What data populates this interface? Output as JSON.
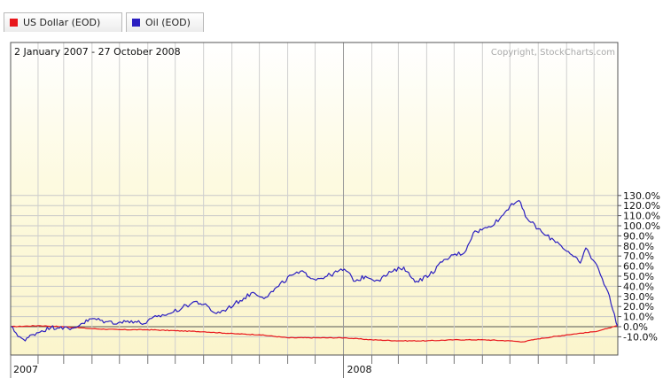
{
  "legend": {
    "items": [
      {
        "label": "US Dollar (EOD)",
        "color": "#e8161b"
      },
      {
        "label": "Oil (EOD)",
        "color": "#2b1fc1"
      }
    ]
  },
  "chart_data": {
    "type": "line",
    "date_range_label": "2 January 2007 - 27 October 2008",
    "copyright": "Copyright, StockCharts.com",
    "x_tick_labels": [
      "2007",
      "2008"
    ],
    "y_tick_labels": [
      "130.0%",
      "120.0%",
      "110.0%",
      "100.0%",
      "90.0%",
      "80.0%",
      "70.0%",
      "60.0%",
      "50.0%",
      "40.0%",
      "30.0%",
      "20.0%",
      "10.0%",
      "0.0%",
      "-10.0%"
    ],
    "ylim": [
      -15,
      136
    ],
    "xlim": [
      "2007-01-02",
      "2008-10-27"
    ],
    "grid": true,
    "series": [
      {
        "name": "Oil (EOD)",
        "color": "#2b1fc1",
        "points": [
          [
            "2007-01-02",
            0
          ],
          [
            "2007-01-12",
            -10
          ],
          [
            "2007-01-18",
            -14
          ],
          [
            "2007-01-25",
            -8
          ],
          [
            "2007-02-05",
            -4
          ],
          [
            "2007-02-15",
            -1
          ],
          [
            "2007-02-26",
            0
          ],
          [
            "2007-03-08",
            -3
          ],
          [
            "2007-03-20",
            3
          ],
          [
            "2007-04-02",
            8
          ],
          [
            "2007-04-16",
            5
          ],
          [
            "2007-04-30",
            4
          ],
          [
            "2007-05-14",
            6
          ],
          [
            "2007-05-28",
            3
          ],
          [
            "2007-06-11",
            10
          ],
          [
            "2007-06-25",
            13
          ],
          [
            "2007-07-09",
            19
          ],
          [
            "2007-07-23",
            25
          ],
          [
            "2007-08-01",
            22
          ],
          [
            "2007-08-15",
            13
          ],
          [
            "2007-08-27",
            18
          ],
          [
            "2007-09-10",
            26
          ],
          [
            "2007-09-24",
            34
          ],
          [
            "2007-10-08",
            29
          ],
          [
            "2007-10-22",
            40
          ],
          [
            "2007-11-05",
            51
          ],
          [
            "2007-11-19",
            54
          ],
          [
            "2007-11-30",
            47
          ],
          [
            "2007-12-14",
            50
          ],
          [
            "2008-01-02",
            57
          ],
          [
            "2008-01-14",
            45
          ],
          [
            "2008-01-25",
            50
          ],
          [
            "2008-02-08",
            46
          ],
          [
            "2008-02-22",
            54
          ],
          [
            "2008-03-07",
            59
          ],
          [
            "2008-03-14",
            50
          ],
          [
            "2008-03-21",
            45
          ],
          [
            "2008-04-04",
            51
          ],
          [
            "2008-04-18",
            64
          ],
          [
            "2008-05-02",
            72
          ],
          [
            "2008-05-12",
            73
          ],
          [
            "2008-05-22",
            93
          ],
          [
            "2008-06-06",
            98
          ],
          [
            "2008-06-20",
            107
          ],
          [
            "2008-07-03",
            122
          ],
          [
            "2008-07-11",
            125
          ],
          [
            "2008-07-18",
            109
          ],
          [
            "2008-08-01",
            97
          ],
          [
            "2008-08-08",
            91
          ],
          [
            "2008-08-22",
            84
          ],
          [
            "2008-09-05",
            72
          ],
          [
            "2008-09-16",
            63
          ],
          [
            "2008-09-22",
            78
          ],
          [
            "2008-10-06",
            57
          ],
          [
            "2008-10-16",
            35
          ],
          [
            "2008-10-27",
            0
          ]
        ]
      },
      {
        "name": "US Dollar (EOD)",
        "color": "#e8161b",
        "points": [
          [
            "2007-01-02",
            0
          ],
          [
            "2007-02-01",
            1
          ],
          [
            "2007-03-01",
            0
          ],
          [
            "2007-04-02",
            -2
          ],
          [
            "2007-05-01",
            -3
          ],
          [
            "2007-06-01",
            -3
          ],
          [
            "2007-07-02",
            -4
          ],
          [
            "2007-08-01",
            -5
          ],
          [
            "2007-09-04",
            -7
          ],
          [
            "2007-10-01",
            -8
          ],
          [
            "2007-11-01",
            -11
          ],
          [
            "2007-12-03",
            -11
          ],
          [
            "2008-01-02",
            -11
          ],
          [
            "2008-02-01",
            -13
          ],
          [
            "2008-03-03",
            -14
          ],
          [
            "2008-04-01",
            -14
          ],
          [
            "2008-05-01",
            -13
          ],
          [
            "2008-06-02",
            -13
          ],
          [
            "2008-07-01",
            -14
          ],
          [
            "2008-07-15",
            -15
          ],
          [
            "2008-08-01",
            -12
          ],
          [
            "2008-09-02",
            -8
          ],
          [
            "2008-10-01",
            -5
          ],
          [
            "2008-10-15",
            -2
          ],
          [
            "2008-10-27",
            1
          ]
        ]
      }
    ]
  }
}
